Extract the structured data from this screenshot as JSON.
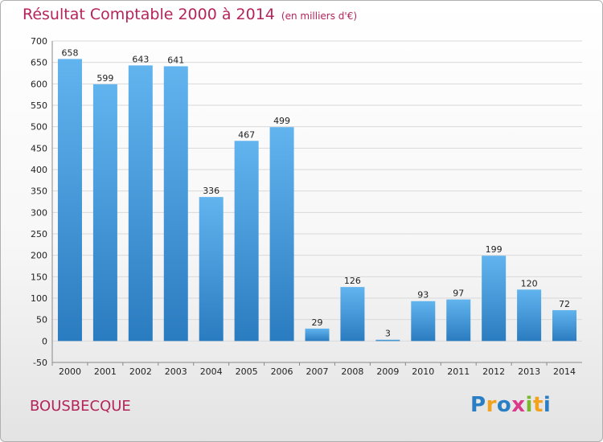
{
  "header": {
    "title": "Résultat Comptable 2000 à 2014",
    "unit": "(en milliers d'€)"
  },
  "footer": {
    "town": "BOUSBECQUE",
    "logo": [
      "P",
      "r",
      "o",
      "x",
      "i",
      "t",
      "i"
    ]
  },
  "chart_data": {
    "type": "bar",
    "title": "Résultat Comptable 2000 à 2014",
    "subtitle": "(en milliers d'€)",
    "categories": [
      "2000",
      "2001",
      "2002",
      "2003",
      "2004",
      "2005",
      "2006",
      "2007",
      "2008",
      "2009",
      "2010",
      "2011",
      "2012",
      "2013",
      "2014"
    ],
    "values": [
      658,
      599,
      643,
      641,
      336,
      467,
      499,
      29,
      126,
      3,
      93,
      97,
      199,
      120,
      72
    ],
    "ylim": [
      -50,
      700
    ],
    "yticks": [
      -50,
      0,
      50,
      100,
      150,
      200,
      250,
      300,
      350,
      400,
      450,
      500,
      550,
      600,
      650,
      700
    ],
    "grid": "horizontal",
    "bar_color_top": "#62b4ef",
    "bar_color_bottom": "#2a7cc0",
    "title_color": "#b5245a"
  }
}
